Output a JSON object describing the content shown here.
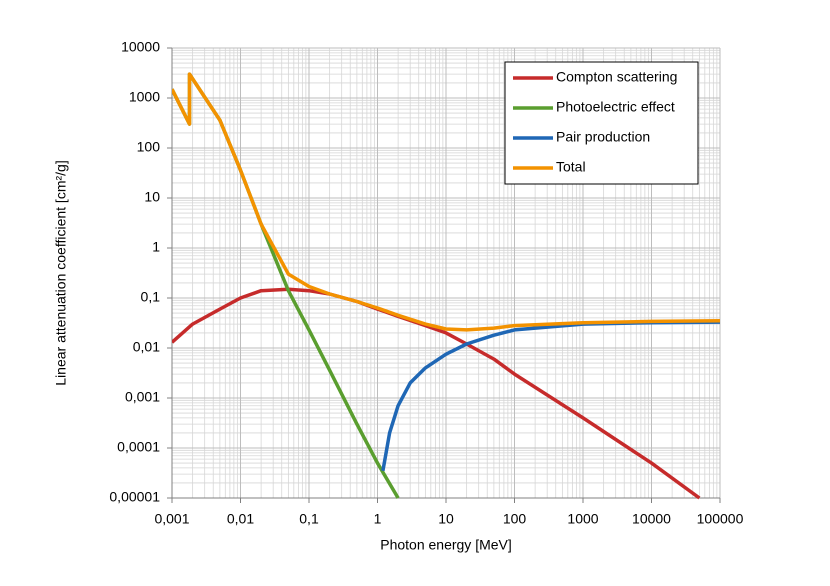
{
  "chart_data": {
    "type": "line",
    "xlabel": "Photon energy [MeV]",
    "ylabel": "Linear attenuation coefficient [cm²/g]",
    "xscale": "log",
    "yscale": "log",
    "grid": true,
    "minor_grid": true,
    "legend": "upper right",
    "xlim": [
      0.001,
      100000
    ],
    "ylim": [
      1e-05,
      10000
    ],
    "xticks": [
      {
        "value": 0.001,
        "label": "0,001"
      },
      {
        "value": 0.01,
        "label": "0,01"
      },
      {
        "value": 0.1,
        "label": "0,1"
      },
      1,
      10,
      100,
      1000,
      10000,
      100000
    ],
    "yticks": [
      {
        "value": 1e-05,
        "label": "0,00001"
      },
      {
        "value": 0.0001,
        "label": "0,0001"
      },
      {
        "value": 0.001,
        "label": "0,001"
      },
      {
        "value": 0.01,
        "label": "0,01"
      },
      {
        "value": 0.1,
        "label": "0,1"
      },
      1,
      10,
      100,
      1000,
      10000
    ],
    "series": [
      {
        "name": "Compton scattering",
        "color": "#c62b2b",
        "x": [
          0.001,
          0.002,
          0.005,
          0.01,
          0.02,
          0.05,
          0.1,
          0.2,
          0.5,
          1,
          2,
          5,
          10,
          20,
          50,
          100,
          1000,
          10000,
          50000
        ],
        "values": [
          0.013,
          0.03,
          0.06,
          0.1,
          0.14,
          0.15,
          0.14,
          0.12,
          0.085,
          0.06,
          0.043,
          0.028,
          0.02,
          0.012,
          0.006,
          0.003,
          0.0004,
          5e-05,
          1e-05
        ]
      },
      {
        "name": "Photoelectric effect",
        "color": "#5a9e2f",
        "x": [
          0.001,
          0.0018,
          0.0018,
          0.005,
          0.01,
          0.02,
          0.05,
          0.1,
          0.2,
          0.5,
          1,
          2
        ],
        "values": [
          1500,
          300,
          3000,
          360,
          36,
          3,
          0.14,
          0.023,
          0.0036,
          0.0003,
          5e-05,
          1e-05
        ]
      },
      {
        "name": "Pair production",
        "color": "#1f67b5",
        "x": [
          1.2,
          1.5,
          2,
          3,
          5,
          10,
          20,
          50,
          100,
          1000,
          10000,
          100000
        ],
        "values": [
          3.5e-05,
          0.0002,
          0.0007,
          0.002,
          0.004,
          0.0075,
          0.012,
          0.018,
          0.023,
          0.03,
          0.032,
          0.033
        ]
      },
      {
        "name": "Total",
        "color": "#f39200",
        "x": [
          0.001,
          0.0018,
          0.0018,
          0.005,
          0.01,
          0.02,
          0.05,
          0.1,
          0.2,
          0.5,
          1,
          2,
          5,
          10,
          20,
          50,
          100,
          1000,
          10000,
          100000
        ],
        "values": [
          1500,
          300,
          3000,
          360,
          36,
          3,
          0.3,
          0.17,
          0.12,
          0.085,
          0.063,
          0.045,
          0.03,
          0.024,
          0.023,
          0.025,
          0.028,
          0.032,
          0.034,
          0.035
        ]
      }
    ]
  }
}
